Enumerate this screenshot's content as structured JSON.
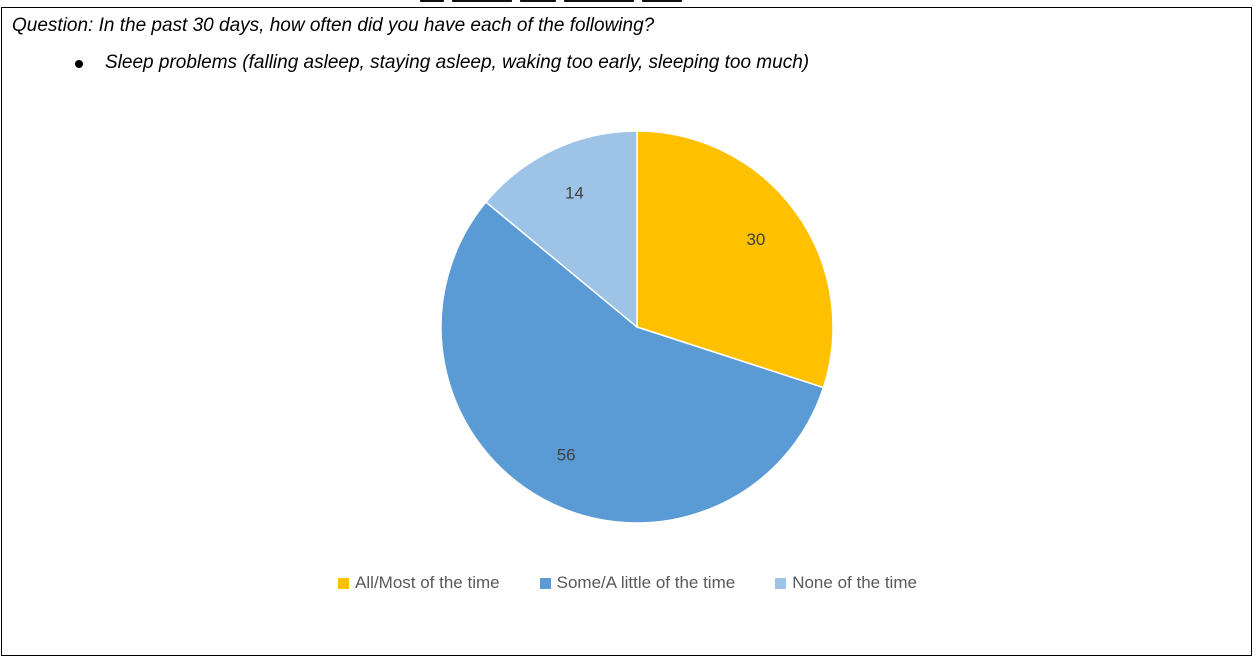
{
  "question": "Question: In the past 30 days, how often did you have each of the following?",
  "bullet_text": "Sleep problems (falling asleep, staying asleep, waking too early, sleeping too much)",
  "chart_data": {
    "type": "pie",
    "title": "",
    "categories": [
      "All/Most of the time",
      "Some/A little of the time",
      "None of the time"
    ],
    "values": [
      30,
      56,
      14
    ],
    "data_labels": [
      "30",
      "56",
      "14"
    ],
    "colors": [
      "#FFC000",
      "#5B9BD5",
      "#9DC3E6"
    ],
    "start": "12 o'clock, clockwise",
    "legend": "bottom"
  }
}
